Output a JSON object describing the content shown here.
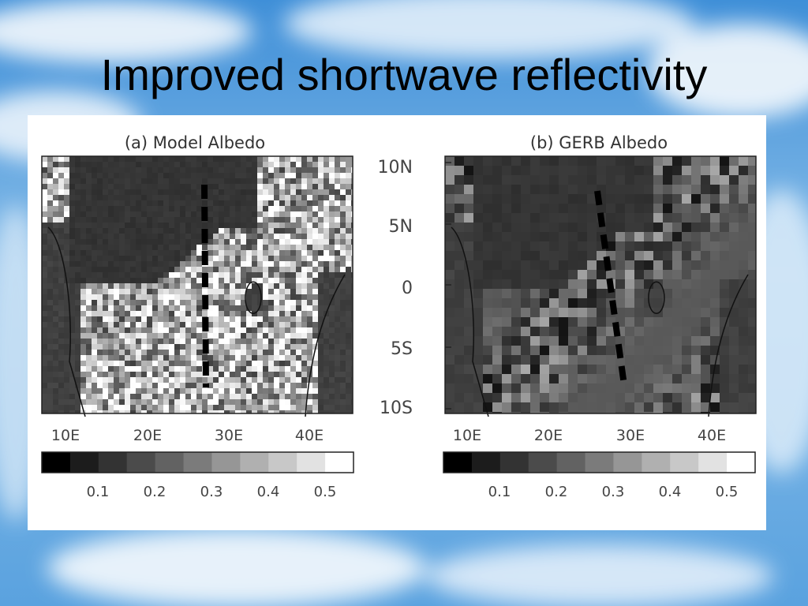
{
  "slide": {
    "title": "Improved shortwave reflectivity"
  },
  "colors": {
    "sky_top": "#3f8fd8",
    "sky_mid": "#86bce8",
    "cloud": "#ffffff",
    "land_dark": "#3a3a3a",
    "ocean": "#4a4a4a",
    "dashed_line": "#000000"
  },
  "panels": [
    {
      "label": "(a) Model Albedo",
      "pattern": "noisy",
      "y_tick_labels": [],
      "x_tick_labels": [
        "10E",
        "20E",
        "30E",
        "40E"
      ]
    },
    {
      "label": "(b) GERB Albedo",
      "pattern": "smooth",
      "y_tick_labels": [
        "10N",
        "5N",
        "0",
        "5S",
        "10S"
      ],
      "x_tick_labels": [
        "10E",
        "20E",
        "30E",
        "40E"
      ]
    }
  ],
  "colorbar": {
    "gray_levels": [
      "#000000",
      "#1c1c1c",
      "#333333",
      "#4b4b4b",
      "#626262",
      "#7b7b7b",
      "#969696",
      "#b0b0b0",
      "#c8c8c8",
      "#e2e2e2",
      "#ffffff"
    ],
    "tick_labels": [
      "0.1",
      "0.2",
      "0.3",
      "0.4",
      "0.5"
    ]
  }
}
